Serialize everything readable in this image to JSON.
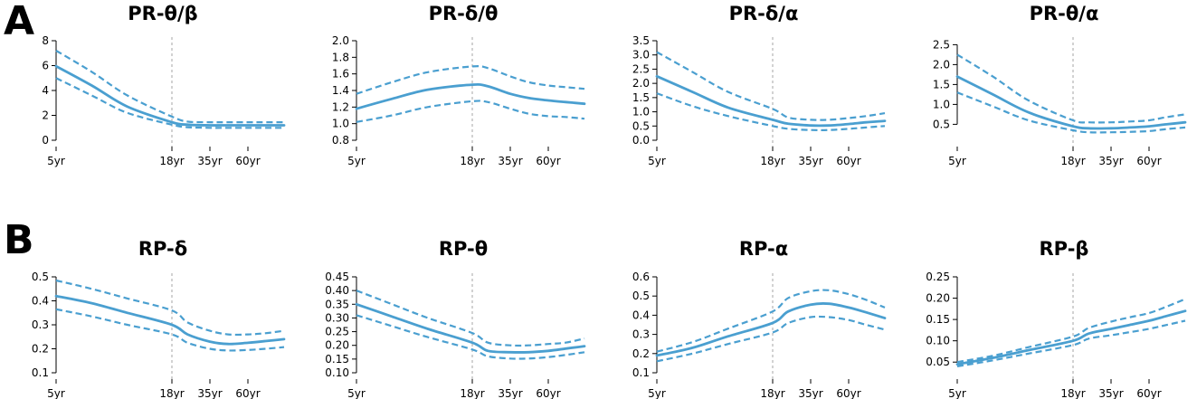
{
  "panel_labels": {
    "a": "A",
    "b": "B"
  },
  "colors": {
    "line": "#4a9fd0",
    "reference": "#b4b4b4",
    "axis": "#000000"
  },
  "chart_data": [
    {
      "type": "line",
      "title": "PR-θ/β",
      "row": "A",
      "x_ticks": [
        {
          "age": 5,
          "label": "5yr"
        },
        {
          "age": 18,
          "label": "18yr"
        },
        {
          "age": 35,
          "label": "35yr"
        },
        {
          "age": 60,
          "label": "60yr"
        }
      ],
      "x_range": [
        5,
        85
      ],
      "reference_age": 18,
      "ylim": [
        0,
        8
      ],
      "y_ticks": [
        "0",
        "2",
        "4",
        "6",
        "8"
      ],
      "ages": [
        5,
        9,
        13,
        18,
        25,
        35,
        47,
        60,
        72,
        85
      ],
      "series": [
        {
          "name": "upper",
          "style": "dashed",
          "values": [
            7.2,
            5.5,
            3.6,
            1.9,
            1.5,
            1.45,
            1.45,
            1.45,
            1.45,
            1.45
          ]
        },
        {
          "name": "mean",
          "style": "solid",
          "values": [
            5.95,
            4.4,
            2.7,
            1.45,
            1.25,
            1.2,
            1.2,
            1.2,
            1.2,
            1.2
          ]
        },
        {
          "name": "lower",
          "style": "dashed",
          "values": [
            5.0,
            3.6,
            2.2,
            1.25,
            1.05,
            1.0,
            1.0,
            1.0,
            1.0,
            1.0
          ]
        }
      ]
    },
    {
      "type": "line",
      "title": "PR-δ/θ",
      "row": "A",
      "x_ticks": [
        {
          "age": 5,
          "label": "5yr"
        },
        {
          "age": 18,
          "label": "18yr"
        },
        {
          "age": 35,
          "label": "35yr"
        },
        {
          "age": 60,
          "label": "60yr"
        }
      ],
      "x_range": [
        5,
        85
      ],
      "reference_age": 18,
      "ylim": [
        0.8,
        2.0
      ],
      "y_ticks": [
        "0.8",
        "1.0",
        "1.2",
        "1.4",
        "1.6",
        "1.8",
        "2.0"
      ],
      "ages": [
        5,
        9,
        13,
        18,
        25,
        35,
        47,
        60,
        72,
        85
      ],
      "series": [
        {
          "name": "upper",
          "style": "dashed",
          "values": [
            1.36,
            1.5,
            1.62,
            1.69,
            1.67,
            1.57,
            1.5,
            1.46,
            1.44,
            1.42
          ]
        },
        {
          "name": "mean",
          "style": "solid",
          "values": [
            1.18,
            1.3,
            1.41,
            1.47,
            1.45,
            1.36,
            1.31,
            1.28,
            1.26,
            1.24
          ]
        },
        {
          "name": "lower",
          "style": "dashed",
          "values": [
            1.02,
            1.1,
            1.2,
            1.27,
            1.26,
            1.18,
            1.12,
            1.09,
            1.08,
            1.06
          ]
        }
      ]
    },
    {
      "type": "line",
      "title": "PR-δ/α",
      "row": "A",
      "x_ticks": [
        {
          "age": 5,
          "label": "5yr"
        },
        {
          "age": 18,
          "label": "18yr"
        },
        {
          "age": 35,
          "label": "35yr"
        },
        {
          "age": 60,
          "label": "60yr"
        }
      ],
      "x_range": [
        5,
        85
      ],
      "reference_age": 18,
      "ylim": [
        0,
        3.5
      ],
      "y_ticks": [
        "0.0",
        "0.5",
        "1.0",
        "1.5",
        "2.0",
        "2.5",
        "3.0",
        "3.5"
      ],
      "ages": [
        5,
        9,
        13,
        18,
        25,
        35,
        47,
        60,
        72,
        85
      ],
      "series": [
        {
          "name": "upper",
          "style": "dashed",
          "values": [
            3.1,
            2.4,
            1.7,
            1.1,
            0.8,
            0.72,
            0.72,
            0.78,
            0.85,
            0.95
          ]
        },
        {
          "name": "mean",
          "style": "solid",
          "values": [
            2.25,
            1.7,
            1.15,
            0.72,
            0.58,
            0.52,
            0.52,
            0.57,
            0.63,
            0.68
          ]
        },
        {
          "name": "lower",
          "style": "dashed",
          "values": [
            1.65,
            1.2,
            0.85,
            0.5,
            0.4,
            0.36,
            0.36,
            0.4,
            0.45,
            0.5
          ]
        }
      ]
    },
    {
      "type": "line",
      "title": "PR-θ/α",
      "row": "A",
      "x_ticks": [
        {
          "age": 5,
          "label": "5yr"
        },
        {
          "age": 18,
          "label": "18yr"
        },
        {
          "age": 35,
          "label": "35yr"
        },
        {
          "age": 60,
          "label": "60yr"
        }
      ],
      "x_range": [
        5,
        85
      ],
      "reference_age": 18,
      "ylim": [
        0.1,
        2.6
      ],
      "y_ticks": [
        "0.5",
        "1.0",
        "1.5",
        "2.0",
        "2.5"
      ],
      "ages": [
        5,
        9,
        13,
        18,
        25,
        35,
        47,
        60,
        72,
        85
      ],
      "series": [
        {
          "name": "upper",
          "style": "dashed",
          "values": [
            2.25,
            1.7,
            1.1,
            0.6,
            0.55,
            0.55,
            0.57,
            0.6,
            0.68,
            0.75
          ]
        },
        {
          "name": "mean",
          "style": "solid",
          "values": [
            1.7,
            1.25,
            0.8,
            0.45,
            0.4,
            0.4,
            0.42,
            0.45,
            0.5,
            0.55
          ]
        },
        {
          "name": "lower",
          "style": "dashed",
          "values": [
            1.3,
            0.95,
            0.6,
            0.35,
            0.3,
            0.3,
            0.31,
            0.33,
            0.38,
            0.42
          ]
        }
      ]
    },
    {
      "type": "line",
      "title": "RP-δ",
      "row": "B",
      "x_ticks": [
        {
          "age": 5,
          "label": "5yr"
        },
        {
          "age": 18,
          "label": "18yr"
        },
        {
          "age": 35,
          "label": "35yr"
        },
        {
          "age": 60,
          "label": "60yr"
        }
      ],
      "x_range": [
        5,
        85
      ],
      "reference_age": 18,
      "ylim": [
        0.1,
        0.5
      ],
      "y_ticks": [
        "0.1",
        "0.2",
        "0.3",
        "0.4",
        "0.5"
      ],
      "ages": [
        5,
        9,
        13,
        18,
        25,
        35,
        47,
        60,
        72,
        85
      ],
      "series": [
        {
          "name": "upper",
          "style": "dashed",
          "values": [
            0.485,
            0.45,
            0.41,
            0.36,
            0.31,
            0.275,
            0.26,
            0.26,
            0.265,
            0.275
          ]
        },
        {
          "name": "mean",
          "style": "solid",
          "values": [
            0.42,
            0.39,
            0.35,
            0.3,
            0.26,
            0.23,
            0.22,
            0.225,
            0.232,
            0.24
          ]
        },
        {
          "name": "lower",
          "style": "dashed",
          "values": [
            0.365,
            0.335,
            0.3,
            0.26,
            0.225,
            0.2,
            0.193,
            0.195,
            0.2,
            0.207
          ]
        }
      ]
    },
    {
      "type": "line",
      "title": "RP-θ",
      "row": "B",
      "x_ticks": [
        {
          "age": 5,
          "label": "5yr"
        },
        {
          "age": 18,
          "label": "18yr"
        },
        {
          "age": 35,
          "label": "35yr"
        },
        {
          "age": 60,
          "label": "60yr"
        }
      ],
      "x_range": [
        5,
        85
      ],
      "reference_age": 18,
      "ylim": [
        0.1,
        0.45
      ],
      "y_ticks": [
        "0.10",
        "0.15",
        "0.20",
        "0.25",
        "0.30",
        "0.35",
        "0.40",
        "0.45"
      ],
      "ages": [
        5,
        9,
        13,
        18,
        25,
        35,
        47,
        60,
        72,
        85
      ],
      "series": [
        {
          "name": "upper",
          "style": "dashed",
          "values": [
            0.4,
            0.35,
            0.3,
            0.245,
            0.21,
            0.2,
            0.2,
            0.205,
            0.21,
            0.225
          ]
        },
        {
          "name": "mean",
          "style": "solid",
          "values": [
            0.35,
            0.305,
            0.26,
            0.21,
            0.18,
            0.175,
            0.175,
            0.18,
            0.188,
            0.197
          ]
        },
        {
          "name": "lower",
          "style": "dashed",
          "values": [
            0.31,
            0.27,
            0.23,
            0.185,
            0.16,
            0.152,
            0.152,
            0.157,
            0.165,
            0.175
          ]
        }
      ]
    },
    {
      "type": "line",
      "title": "RP-α",
      "row": "B",
      "x_ticks": [
        {
          "age": 5,
          "label": "5yr"
        },
        {
          "age": 18,
          "label": "18yr"
        },
        {
          "age": 35,
          "label": "35yr"
        },
        {
          "age": 60,
          "label": "60yr"
        }
      ],
      "x_range": [
        5,
        85
      ],
      "reference_age": 18,
      "ylim": [
        0.1,
        0.6
      ],
      "y_ticks": [
        "0.1",
        "0.2",
        "0.3",
        "0.4",
        "0.5",
        "0.6"
      ],
      "ages": [
        5,
        9,
        13,
        18,
        25,
        35,
        47,
        60,
        72,
        85
      ],
      "series": [
        {
          "name": "upper",
          "style": "dashed",
          "values": [
            0.21,
            0.26,
            0.33,
            0.42,
            0.49,
            0.525,
            0.53,
            0.51,
            0.48,
            0.44
          ]
        },
        {
          "name": "mean",
          "style": "solid",
          "values": [
            0.19,
            0.23,
            0.29,
            0.36,
            0.42,
            0.455,
            0.46,
            0.44,
            0.415,
            0.385
          ]
        },
        {
          "name": "lower",
          "style": "dashed",
          "values": [
            0.16,
            0.2,
            0.25,
            0.31,
            0.36,
            0.39,
            0.39,
            0.375,
            0.35,
            0.325
          ]
        }
      ]
    },
    {
      "type": "line",
      "title": "RP-β",
      "row": "B",
      "x_ticks": [
        {
          "age": 5,
          "label": "5yr"
        },
        {
          "age": 18,
          "label": "18yr"
        },
        {
          "age": 35,
          "label": "35yr"
        },
        {
          "age": 60,
          "label": "60yr"
        }
      ],
      "x_range": [
        5,
        85
      ],
      "reference_age": 18,
      "ylim": [
        0.025,
        0.25
      ],
      "y_ticks": [
        "0.05",
        "0.10",
        "0.15",
        "0.20",
        "0.25"
      ],
      "ages": [
        5,
        9,
        13,
        18,
        25,
        35,
        47,
        60,
        72,
        85
      ],
      "series": [
        {
          "name": "upper",
          "style": "dashed",
          "values": [
            0.05,
            0.065,
            0.085,
            0.11,
            0.13,
            0.145,
            0.155,
            0.165,
            0.18,
            0.198
          ]
        },
        {
          "name": "mean",
          "style": "solid",
          "values": [
            0.045,
            0.06,
            0.078,
            0.1,
            0.117,
            0.128,
            0.137,
            0.147,
            0.158,
            0.17
          ]
        },
        {
          "name": "lower",
          "style": "dashed",
          "values": [
            0.04,
            0.054,
            0.07,
            0.09,
            0.105,
            0.113,
            0.12,
            0.128,
            0.137,
            0.147
          ]
        }
      ]
    }
  ]
}
